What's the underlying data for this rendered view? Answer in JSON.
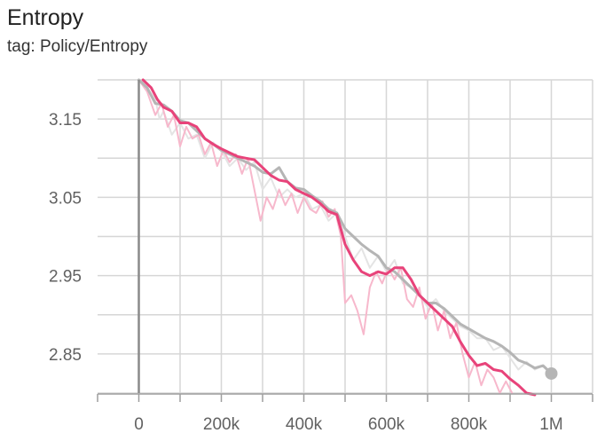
{
  "header": {
    "title": "Entropy",
    "subtitle": "tag: Policy/Entropy"
  },
  "chart_data": {
    "type": "line",
    "xlabel": "",
    "ylabel": "",
    "xlim": [
      -100000,
      1100000
    ],
    "ylim": [
      2.8,
      3.2
    ],
    "x_ticks": [
      0,
      100000,
      200000,
      300000,
      400000,
      500000,
      600000,
      700000,
      800000,
      900000,
      1000000,
      1100000
    ],
    "x_tick_labels": [
      "",
      "0",
      "",
      "200k",
      "",
      "400k",
      "",
      "600k",
      "",
      "800k",
      "",
      "1M",
      ""
    ],
    "x_tick_label_values": [
      -100000,
      0,
      100000,
      200000,
      300000,
      400000,
      500000,
      600000,
      700000,
      800000,
      900000,
      1000000,
      1100000
    ],
    "y_ticks": [
      3.15,
      3.05,
      2.95,
      2.85
    ],
    "y_tick_labels": [
      "3.15",
      "3.05",
      "2.95",
      "2.85"
    ],
    "y_gridlines": [
      3.2,
      3.15,
      3.1,
      3.05,
      3.0,
      2.95,
      2.9,
      2.85,
      2.8
    ],
    "grid": true,
    "colors": {
      "pink": "#e8437a",
      "pink_raw": "#f7b8cc",
      "gray": "#b5b5b5",
      "gray_raw": "#e4e4e4",
      "axis": "#9e9e9e",
      "grid": "#d6d6d6"
    },
    "series": [
      {
        "key": "gray_raw",
        "values": [
          [
            0,
            3.205
          ],
          [
            20000,
            3.19
          ],
          [
            40000,
            3.175
          ],
          [
            50000,
            3.15
          ],
          [
            60000,
            3.16
          ],
          [
            80000,
            3.13
          ],
          [
            100000,
            3.145
          ],
          [
            120000,
            3.125
          ],
          [
            140000,
            3.13
          ],
          [
            160000,
            3.1
          ],
          [
            180000,
            3.12
          ],
          [
            200000,
            3.11
          ],
          [
            220000,
            3.09
          ],
          [
            240000,
            3.1
          ],
          [
            260000,
            3.085
          ],
          [
            280000,
            3.095
          ],
          [
            300000,
            3.06
          ],
          [
            320000,
            3.075
          ],
          [
            340000,
            3.05
          ],
          [
            360000,
            3.06
          ],
          [
            380000,
            3.05
          ],
          [
            400000,
            3.055
          ],
          [
            420000,
            3.035
          ],
          [
            440000,
            3.04
          ],
          [
            460000,
            3.02
          ],
          [
            480000,
            3.03
          ],
          [
            500000,
            3.0
          ],
          [
            520000,
            2.97
          ],
          [
            540000,
            2.985
          ],
          [
            560000,
            2.96
          ],
          [
            580000,
            2.975
          ],
          [
            600000,
            2.955
          ],
          [
            620000,
            2.97
          ],
          [
            640000,
            2.94
          ],
          [
            660000,
            2.935
          ],
          [
            680000,
            2.925
          ],
          [
            700000,
            2.91
          ],
          [
            720000,
            2.92
          ],
          [
            740000,
            2.905
          ],
          [
            760000,
            2.895
          ],
          [
            780000,
            2.885
          ],
          [
            800000,
            2.88
          ],
          [
            820000,
            2.87
          ],
          [
            840000,
            2.87
          ],
          [
            860000,
            2.855
          ],
          [
            880000,
            2.86
          ],
          [
            900000,
            2.845
          ],
          [
            920000,
            2.83
          ],
          [
            940000,
            2.84
          ],
          [
            960000,
            2.83
          ],
          [
            980000,
            2.835
          ],
          [
            1000000,
            2.825
          ]
        ]
      },
      {
        "key": "pink_raw",
        "values": [
          [
            0,
            3.205
          ],
          [
            20000,
            3.185
          ],
          [
            40000,
            3.155
          ],
          [
            55000,
            3.17
          ],
          [
            70000,
            3.14
          ],
          [
            85000,
            3.155
          ],
          [
            100000,
            3.115
          ],
          [
            115000,
            3.14
          ],
          [
            130000,
            3.125
          ],
          [
            145000,
            3.13
          ],
          [
            160000,
            3.105
          ],
          [
            175000,
            3.12
          ],
          [
            190000,
            3.09
          ],
          [
            205000,
            3.11
          ],
          [
            220000,
            3.095
          ],
          [
            235000,
            3.105
          ],
          [
            250000,
            3.08
          ],
          [
            265000,
            3.1
          ],
          [
            280000,
            3.06
          ],
          [
            295000,
            3.02
          ],
          [
            310000,
            3.05
          ],
          [
            325000,
            3.035
          ],
          [
            340000,
            3.06
          ],
          [
            355000,
            3.04
          ],
          [
            370000,
            3.055
          ],
          [
            385000,
            3.03
          ],
          [
            400000,
            3.05
          ],
          [
            415000,
            3.035
          ],
          [
            430000,
            3.03
          ],
          [
            445000,
            3.045
          ],
          [
            460000,
            3.025
          ],
          [
            475000,
            3.035
          ],
          [
            490000,
            3.0
          ],
          [
            500000,
            2.915
          ],
          [
            515000,
            2.925
          ],
          [
            530000,
            2.905
          ],
          [
            545000,
            2.875
          ],
          [
            560000,
            2.935
          ],
          [
            575000,
            2.955
          ],
          [
            590000,
            2.94
          ],
          [
            605000,
            2.96
          ],
          [
            620000,
            2.945
          ],
          [
            635000,
            2.96
          ],
          [
            650000,
            2.92
          ],
          [
            665000,
            2.91
          ],
          [
            680000,
            2.935
          ],
          [
            695000,
            2.895
          ],
          [
            710000,
            2.915
          ],
          [
            725000,
            2.88
          ],
          [
            740000,
            2.905
          ],
          [
            755000,
            2.87
          ],
          [
            770000,
            2.89
          ],
          [
            785000,
            2.85
          ],
          [
            800000,
            2.82
          ],
          [
            815000,
            2.84
          ],
          [
            830000,
            2.81
          ],
          [
            845000,
            2.83
          ],
          [
            860000,
            2.82
          ],
          [
            875000,
            2.8
          ],
          [
            890000,
            2.815
          ],
          [
            905000,
            2.8
          ]
        ]
      },
      {
        "key": "gray",
        "values": [
          [
            0,
            3.205
          ],
          [
            20000,
            3.19
          ],
          [
            40000,
            3.17
          ],
          [
            60000,
            3.168
          ],
          [
            80000,
            3.16
          ],
          [
            100000,
            3.148
          ],
          [
            120000,
            3.145
          ],
          [
            140000,
            3.135
          ],
          [
            160000,
            3.125
          ],
          [
            180000,
            3.118
          ],
          [
            200000,
            3.11
          ],
          [
            220000,
            3.105
          ],
          [
            240000,
            3.1
          ],
          [
            260000,
            3.095
          ],
          [
            280000,
            3.09
          ],
          [
            300000,
            3.082
          ],
          [
            320000,
            3.08
          ],
          [
            340000,
            3.088
          ],
          [
            360000,
            3.07
          ],
          [
            380000,
            3.062
          ],
          [
            400000,
            3.06
          ],
          [
            420000,
            3.052
          ],
          [
            440000,
            3.045
          ],
          [
            460000,
            3.035
          ],
          [
            480000,
            3.03
          ],
          [
            500000,
            3.01
          ],
          [
            520000,
            3.0
          ],
          [
            540000,
            2.99
          ],
          [
            560000,
            2.982
          ],
          [
            580000,
            2.975
          ],
          [
            600000,
            2.96
          ],
          [
            620000,
            2.955
          ],
          [
            640000,
            2.945
          ],
          [
            660000,
            2.935
          ],
          [
            680000,
            2.925
          ],
          [
            700000,
            2.915
          ],
          [
            720000,
            2.915
          ],
          [
            740000,
            2.908
          ],
          [
            760000,
            2.898
          ],
          [
            780000,
            2.888
          ],
          [
            800000,
            2.882
          ],
          [
            820000,
            2.876
          ],
          [
            840000,
            2.87
          ],
          [
            860000,
            2.866
          ],
          [
            880000,
            2.86
          ],
          [
            900000,
            2.852
          ],
          [
            920000,
            2.842
          ],
          [
            940000,
            2.838
          ],
          [
            960000,
            2.832
          ],
          [
            980000,
            2.835
          ],
          [
            1000000,
            2.825
          ]
        ]
      },
      {
        "key": "pink",
        "values": [
          [
            10000,
            3.205
          ],
          [
            30000,
            3.19
          ],
          [
            45000,
            3.175
          ],
          [
            60000,
            3.165
          ],
          [
            80000,
            3.16
          ],
          [
            100000,
            3.145
          ],
          [
            120000,
            3.145
          ],
          [
            140000,
            3.14
          ],
          [
            160000,
            3.125
          ],
          [
            180000,
            3.118
          ],
          [
            200000,
            3.112
          ],
          [
            220000,
            3.107
          ],
          [
            240000,
            3.102
          ],
          [
            260000,
            3.1
          ],
          [
            280000,
            3.098
          ],
          [
            300000,
            3.088
          ],
          [
            320000,
            3.078
          ],
          [
            340000,
            3.072
          ],
          [
            360000,
            3.07
          ],
          [
            380000,
            3.06
          ],
          [
            400000,
            3.055
          ],
          [
            420000,
            3.05
          ],
          [
            440000,
            3.042
          ],
          [
            460000,
            3.032
          ],
          [
            480000,
            3.028
          ],
          [
            500000,
            2.99
          ],
          [
            520000,
            2.97
          ],
          [
            540000,
            2.955
          ],
          [
            560000,
            2.95
          ],
          [
            580000,
            2.955
          ],
          [
            600000,
            2.952
          ],
          [
            620000,
            2.96
          ],
          [
            640000,
            2.96
          ],
          [
            660000,
            2.945
          ],
          [
            680000,
            2.925
          ],
          [
            700000,
            2.915
          ],
          [
            720000,
            2.905
          ],
          [
            740000,
            2.895
          ],
          [
            760000,
            2.885
          ],
          [
            780000,
            2.865
          ],
          [
            800000,
            2.848
          ],
          [
            820000,
            2.835
          ],
          [
            840000,
            2.838
          ],
          [
            860000,
            2.83
          ],
          [
            880000,
            2.828
          ],
          [
            900000,
            2.818
          ],
          [
            920000,
            2.81
          ],
          [
            940000,
            2.8
          ],
          [
            960000,
            2.795
          ]
        ]
      }
    ],
    "end_marker": {
      "series": "gray",
      "x": 1000000,
      "y": 2.825
    }
  }
}
